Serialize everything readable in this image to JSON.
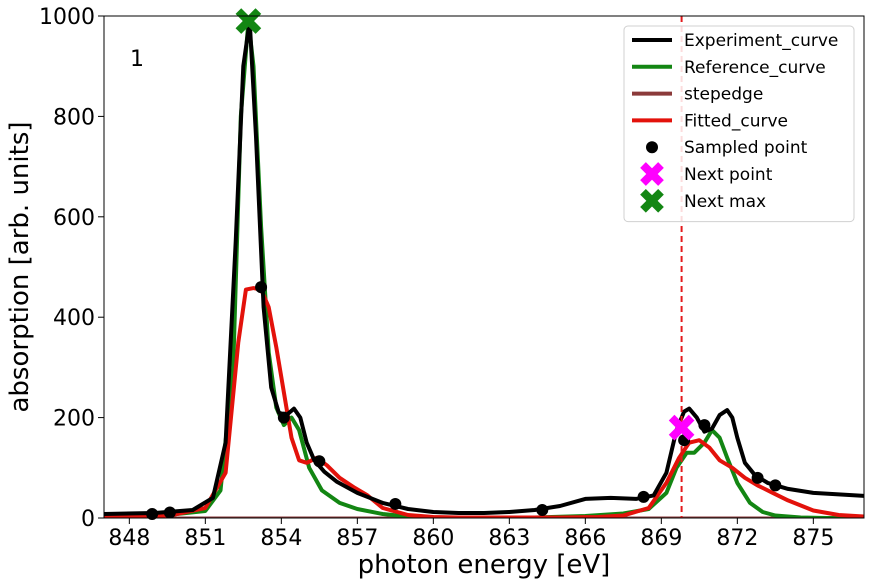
{
  "chart_data": {
    "type": "line",
    "xlabel": "photon energy [eV]",
    "ylabel": "absorption [arb. units]",
    "panel_label": "1",
    "xlim": [
      847.0,
      877.0
    ],
    "ylim": [
      0,
      1000
    ],
    "xticks": [
      848,
      851,
      854,
      857,
      860,
      863,
      866,
      869,
      872,
      875
    ],
    "yticks": [
      0,
      200,
      400,
      600,
      800,
      1000
    ],
    "grid": false,
    "legend_position": "upper-right",
    "vline": {
      "x": 869.8,
      "color": "#e41a1c",
      "style": "dashed"
    },
    "series": [
      {
        "name": "Experiment_curve",
        "color": "#000000",
        "x": [
          847.0,
          849.0,
          850.5,
          851.3,
          851.8,
          852.2,
          852.5,
          852.75,
          853.0,
          853.3,
          853.6,
          853.9,
          854.2,
          854.5,
          854.75,
          855.0,
          855.3,
          855.7,
          856.2,
          857.0,
          858.0,
          859.0,
          860.0,
          861.0,
          862.0,
          863.0,
          864.0,
          865.0,
          866.0,
          867.0,
          868.0,
          868.7,
          869.2,
          869.6,
          869.9,
          870.1,
          870.4,
          870.7,
          871.0,
          871.3,
          871.6,
          871.8,
          872.0,
          872.3,
          872.7,
          873.2,
          874.0,
          875.0,
          876.0,
          877.0
        ],
        "y": [
          8,
          10,
          16,
          40,
          150,
          550,
          900,
          990,
          760,
          420,
          260,
          210,
          205,
          218,
          200,
          150,
          115,
          92,
          72,
          50,
          30,
          18,
          12,
          10,
          10,
          12,
          16,
          24,
          38,
          40,
          38,
          45,
          90,
          175,
          212,
          218,
          200,
          172,
          178,
          205,
          215,
          200,
          160,
          110,
          85,
          70,
          58,
          50,
          47,
          44
        ]
      },
      {
        "name": "Reference_curve",
        "color": "#138613",
        "x": [
          847.0,
          849.5,
          851.0,
          851.6,
          852.1,
          852.4,
          852.7,
          852.9,
          853.2,
          853.5,
          853.8,
          854.1,
          854.4,
          854.7,
          855.1,
          855.6,
          856.3,
          857.0,
          858.0,
          859.0,
          860.0,
          862.0,
          864.0,
          866.0,
          867.5,
          868.5,
          869.2,
          869.6,
          870.0,
          870.3,
          870.7,
          871.0,
          871.3,
          871.6,
          872.0,
          872.5,
          873.0,
          873.5,
          874.5,
          875.5,
          877.0
        ],
        "y": [
          5,
          6,
          14,
          55,
          300,
          800,
          990,
          900,
          580,
          330,
          220,
          185,
          200,
          175,
          100,
          55,
          30,
          18,
          8,
          3,
          1,
          0,
          1,
          4,
          9,
          18,
          50,
          100,
          130,
          130,
          150,
          175,
          160,
          120,
          70,
          30,
          12,
          5,
          1,
          0,
          0
        ]
      },
      {
        "name": "stepedge",
        "color": "#8b3a3a",
        "x": [
          847.0,
          877.0
        ],
        "y": [
          0,
          0
        ]
      },
      {
        "name": "Fitted_curve",
        "color": "#e3120b",
        "x": [
          847.0,
          849.5,
          851.0,
          851.8,
          852.3,
          852.6,
          852.9,
          853.2,
          853.5,
          853.8,
          854.1,
          854.4,
          854.7,
          855.0,
          855.4,
          855.8,
          856.3,
          856.9,
          857.4,
          858.0,
          859.0,
          860.0,
          861.0,
          863.0,
          865.0,
          866.5,
          867.5,
          868.5,
          869.2,
          869.7,
          870.1,
          870.5,
          870.9,
          871.3,
          871.8,
          872.3,
          872.8,
          873.4,
          874.0,
          875.0,
          876.0,
          877.0
        ],
        "y": [
          2,
          4,
          20,
          90,
          350,
          455,
          458,
          455,
          420,
          340,
          250,
          160,
          115,
          110,
          120,
          105,
          80,
          60,
          45,
          20,
          6,
          2,
          1,
          1,
          1,
          2,
          5,
          20,
          70,
          120,
          150,
          155,
          140,
          115,
          100,
          80,
          65,
          50,
          35,
          15,
          6,
          3
        ]
      }
    ],
    "points": [
      {
        "name": "Sampled point",
        "color": "#000000",
        "marker": "circle",
        "x": [
          848.9,
          849.6,
          853.2,
          854.1,
          855.5,
          858.5,
          864.3,
          868.3,
          869.9,
          870.7,
          872.8,
          873.5
        ],
        "y": [
          8,
          11,
          460,
          200,
          113,
          28,
          16,
          42,
          155,
          185,
          80,
          65
        ]
      },
      {
        "name": "Next point",
        "color": "#ff00ff",
        "marker": "x",
        "x": [
          869.8
        ],
        "y": [
          180
        ]
      },
      {
        "name": "Next max",
        "color": "#138613",
        "marker": "x",
        "x": [
          852.7
        ],
        "y": [
          990
        ]
      }
    ]
  }
}
